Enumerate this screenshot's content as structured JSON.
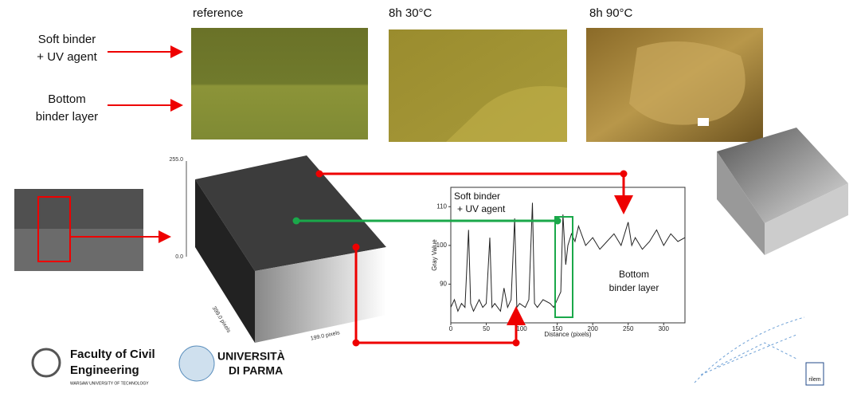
{
  "column_labels": [
    "reference",
    "8h 30°C",
    "8h 90°C"
  ],
  "row_labels": {
    "soft_binder": [
      "Soft binder",
      "+ UV agent"
    ],
    "bottom_binder": [
      "Bottom",
      "binder layer"
    ]
  },
  "surface_plot": {
    "top_tick": "255.0",
    "bottom_tick": "0.0",
    "depth_label": "399.0 pixels",
    "width_label": "199.0 pixels"
  },
  "profile": {
    "xlabel": "Distance (pixels)",
    "ylabel": "Gray Value",
    "xlim": [
      0,
      330
    ],
    "ylim": [
      80,
      115
    ],
    "xticks": [
      0,
      50,
      100,
      150,
      200,
      250,
      300
    ],
    "yticks": [
      90,
      100,
      110
    ],
    "top_note": [
      "Soft binder",
      "+ UV agent"
    ],
    "bottom_note": [
      "Bottom",
      "binder layer"
    ],
    "x": [
      0,
      5,
      10,
      15,
      20,
      25,
      28,
      32,
      40,
      45,
      50,
      55,
      58,
      62,
      70,
      75,
      80,
      85,
      90,
      93,
      97,
      105,
      110,
      115,
      118,
      122,
      130,
      140,
      145,
      150,
      155,
      158,
      162,
      165,
      170,
      175,
      180,
      190,
      200,
      210,
      220,
      230,
      240,
      250,
      255,
      260,
      270,
      280,
      290,
      300,
      310,
      320,
      330
    ],
    "values": [
      84,
      86,
      83,
      85,
      84,
      104,
      85,
      83,
      86,
      84,
      85,
      102,
      84,
      85,
      83,
      89,
      84,
      86,
      107,
      84,
      85,
      84,
      86,
      111,
      85,
      84,
      86,
      85,
      84,
      86,
      88,
      108,
      95,
      100,
      103,
      101,
      105,
      100,
      102,
      99,
      101,
      103,
      100,
      106,
      100,
      102,
      99,
      101,
      104,
      100,
      103,
      101,
      102
    ]
  },
  "logos": {
    "faculty": [
      "Faculty of Civil",
      "Engineering"
    ],
    "warsaw": "WARSAW UNIVERSITY OF TECHNOLOGY",
    "parma": [
      "UNIVERSITÀ",
      "DI PARMA"
    ],
    "rilem": "rilem"
  }
}
